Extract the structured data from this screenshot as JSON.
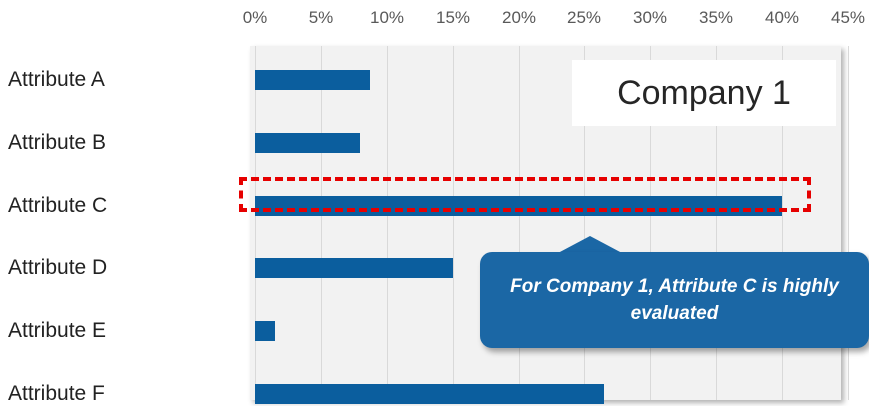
{
  "colors": {
    "bar": "#0b5e9e",
    "callout": "#1b67a5",
    "highlight": "#e60000",
    "plot_background": "#f2f2f2",
    "gridline": "#d9d9d9"
  },
  "chart_data": {
    "type": "bar",
    "orientation": "horizontal",
    "title": "Company 1",
    "xlabel": "",
    "ylabel": "",
    "categories": [
      "Attribute A",
      "Attribute B",
      "Attribute C",
      "Attribute D",
      "Attribute E",
      "Attribute F"
    ],
    "values": [
      8.7,
      8,
      40,
      15,
      1.5,
      26.5
    ],
    "xlim": [
      0,
      45
    ],
    "x_ticks": [
      "0%",
      "5%",
      "10%",
      "15%",
      "20%",
      "25%",
      "30%",
      "35%",
      "40%",
      "45%"
    ],
    "x_axis_position": "top",
    "grid": true,
    "legend": "none",
    "highlighted_category": "Attribute C",
    "annotation": "For Company 1, Attribute C is highly evaluated"
  }
}
